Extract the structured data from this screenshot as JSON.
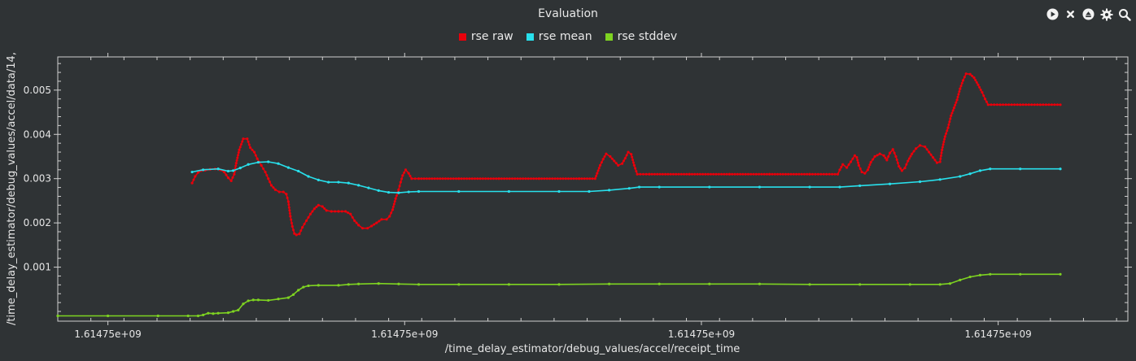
{
  "chart_data": {
    "type": "scatter",
    "title": "Evaluation",
    "xlabel": "/time_delay_estimator/debug_values/accel/receipt_time",
    "ylabel": "/time_delay_estimator/debug_values/accel/data/14,",
    "xlim": [
      0,
      1
    ],
    "ylim": [
      -0.00022,
      0.00575
    ],
    "x_tick_labels": [
      "1.61475e+09",
      "1.61475e+09",
      "1.61475e+09",
      "1.61475e+09"
    ],
    "y_ticks": [
      0.001,
      0.002,
      0.003,
      0.004,
      0.005
    ],
    "y_tick_labels": [
      "0.001",
      "0.002",
      "0.003",
      "0.004",
      "0.005"
    ],
    "legend_position": "top-center",
    "series": [
      {
        "name": "rse raw",
        "color": "#e8000b",
        "points": [
          [
            0.134,
            0.0029
          ],
          [
            0.137,
            0.00305
          ],
          [
            0.14,
            0.00314
          ],
          [
            0.143,
            0.00318
          ],
          [
            0.147,
            0.00319
          ],
          [
            0.152,
            0.00321
          ],
          [
            0.157,
            0.00322
          ],
          [
            0.162,
            0.0032
          ],
          [
            0.166,
            0.00315
          ],
          [
            0.17,
            0.00302
          ],
          [
            0.173,
            0.00295
          ],
          [
            0.176,
            0.0031
          ],
          [
            0.178,
            0.00335
          ],
          [
            0.181,
            0.00365
          ],
          [
            0.185,
            0.0039
          ],
          [
            0.189,
            0.0039
          ],
          [
            0.192,
            0.0037
          ],
          [
            0.196,
            0.0036
          ],
          [
            0.199,
            0.00345
          ],
          [
            0.203,
            0.0033
          ],
          [
            0.207,
            0.00315
          ],
          [
            0.21,
            0.003
          ],
          [
            0.213,
            0.00285
          ],
          [
            0.217,
            0.00275
          ],
          [
            0.221,
            0.0027
          ],
          [
            0.225,
            0.0027
          ],
          [
            0.228,
            0.00265
          ],
          [
            0.23,
            0.00248
          ],
          [
            0.232,
            0.00215
          ],
          [
            0.234,
            0.00192
          ],
          [
            0.236,
            0.00176
          ],
          [
            0.238,
            0.00173
          ],
          [
            0.241,
            0.00175
          ],
          [
            0.244,
            0.0019
          ],
          [
            0.248,
            0.00205
          ],
          [
            0.252,
            0.0022
          ],
          [
            0.256,
            0.00232
          ],
          [
            0.26,
            0.0024
          ],
          [
            0.264,
            0.00237
          ],
          [
            0.268,
            0.00228
          ],
          [
            0.273,
            0.00226
          ],
          [
            0.28,
            0.00226
          ],
          [
            0.287,
            0.00226
          ],
          [
            0.292,
            0.0022
          ],
          [
            0.296,
            0.00205
          ],
          [
            0.3,
            0.00195
          ],
          [
            0.304,
            0.00188
          ],
          [
            0.309,
            0.00188
          ],
          [
            0.313,
            0.00193
          ],
          [
            0.318,
            0.002
          ],
          [
            0.323,
            0.00208
          ],
          [
            0.328,
            0.00208
          ],
          [
            0.331,
            0.00215
          ],
          [
            0.334,
            0.0023
          ],
          [
            0.337,
            0.00255
          ],
          [
            0.34,
            0.00275
          ],
          [
            0.342,
            0.00292
          ],
          [
            0.344,
            0.00307
          ],
          [
            0.347,
            0.0032
          ],
          [
            0.35,
            0.00312
          ],
          [
            0.353,
            0.003
          ],
          [
            0.36,
            0.003
          ],
          [
            0.4,
            0.003
          ],
          [
            0.44,
            0.003
          ],
          [
            0.48,
            0.003
          ],
          [
            0.52,
            0.003
          ],
          [
            0.536,
            0.003
          ],
          [
            0.538,
            0.00312
          ],
          [
            0.541,
            0.0033
          ],
          [
            0.544,
            0.00344
          ],
          [
            0.547,
            0.00356
          ],
          [
            0.551,
            0.0035
          ],
          [
            0.555,
            0.0034
          ],
          [
            0.559,
            0.0033
          ],
          [
            0.563,
            0.00334
          ],
          [
            0.566,
            0.00346
          ],
          [
            0.569,
            0.0036
          ],
          [
            0.572,
            0.00355
          ],
          [
            0.575,
            0.0033
          ],
          [
            0.578,
            0.0031
          ],
          [
            0.59,
            0.0031
          ],
          [
            0.63,
            0.0031
          ],
          [
            0.67,
            0.0031
          ],
          [
            0.71,
            0.0031
          ],
          [
            0.75,
            0.0031
          ],
          [
            0.778,
            0.0031
          ],
          [
            0.78,
            0.0032
          ],
          [
            0.783,
            0.00332
          ],
          [
            0.787,
            0.00325
          ],
          [
            0.791,
            0.00338
          ],
          [
            0.795,
            0.00352
          ],
          [
            0.797,
            0.00348
          ],
          [
            0.799,
            0.0033
          ],
          [
            0.802,
            0.00315
          ],
          [
            0.805,
            0.00312
          ],
          [
            0.808,
            0.0032
          ],
          [
            0.811,
            0.00337
          ],
          [
            0.815,
            0.0035
          ],
          [
            0.82,
            0.00356
          ],
          [
            0.824,
            0.00352
          ],
          [
            0.827,
            0.00342
          ],
          [
            0.83,
            0.00358
          ],
          [
            0.833,
            0.00366
          ],
          [
            0.836,
            0.0035
          ],
          [
            0.839,
            0.00328
          ],
          [
            0.842,
            0.00318
          ],
          [
            0.845,
            0.00324
          ],
          [
            0.848,
            0.0034
          ],
          [
            0.852,
            0.00356
          ],
          [
            0.856,
            0.00368
          ],
          [
            0.86,
            0.00375
          ],
          [
            0.865,
            0.00372
          ],
          [
            0.869,
            0.0036
          ],
          [
            0.873,
            0.00348
          ],
          [
            0.877,
            0.00336
          ],
          [
            0.88,
            0.00338
          ],
          [
            0.882,
            0.00365
          ],
          [
            0.885,
            0.00395
          ],
          [
            0.888,
            0.00415
          ],
          [
            0.891,
            0.00442
          ],
          [
            0.894,
            0.0046
          ],
          [
            0.897,
            0.00478
          ],
          [
            0.9,
            0.00503
          ],
          [
            0.903,
            0.00522
          ],
          [
            0.906,
            0.00537
          ],
          [
            0.91,
            0.00536
          ],
          [
            0.914,
            0.00528
          ],
          [
            0.918,
            0.00512
          ],
          [
            0.922,
            0.00495
          ],
          [
            0.925,
            0.0048
          ],
          [
            0.928,
            0.00467
          ],
          [
            0.94,
            0.00467
          ],
          [
            0.96,
            0.00467
          ],
          [
            0.98,
            0.00467
          ],
          [
            1.0,
            0.00467
          ]
        ]
      },
      {
        "name": "rse mean",
        "color": "#28e0ec",
        "points": [
          [
            0.134,
            0.00315
          ],
          [
            0.145,
            0.0032
          ],
          [
            0.16,
            0.00322
          ],
          [
            0.17,
            0.00317
          ],
          [
            0.175,
            0.00318
          ],
          [
            0.182,
            0.00324
          ],
          [
            0.19,
            0.00332
          ],
          [
            0.2,
            0.00337
          ],
          [
            0.21,
            0.00338
          ],
          [
            0.22,
            0.00334
          ],
          [
            0.23,
            0.00325
          ],
          [
            0.24,
            0.00317
          ],
          [
            0.25,
            0.00305
          ],
          [
            0.26,
            0.00297
          ],
          [
            0.27,
            0.00292
          ],
          [
            0.28,
            0.00292
          ],
          [
            0.29,
            0.0029
          ],
          [
            0.3,
            0.00285
          ],
          [
            0.31,
            0.00279
          ],
          [
            0.32,
            0.00273
          ],
          [
            0.33,
            0.00269
          ],
          [
            0.34,
            0.00268
          ],
          [
            0.35,
            0.0027
          ],
          [
            0.36,
            0.00271
          ],
          [
            0.4,
            0.00271
          ],
          [
            0.45,
            0.00271
          ],
          [
            0.5,
            0.00271
          ],
          [
            0.53,
            0.00271
          ],
          [
            0.55,
            0.00274
          ],
          [
            0.57,
            0.00278
          ],
          [
            0.58,
            0.00281
          ],
          [
            0.6,
            0.00281
          ],
          [
            0.65,
            0.00281
          ],
          [
            0.7,
            0.00281
          ],
          [
            0.75,
            0.00281
          ],
          [
            0.78,
            0.00281
          ],
          [
            0.8,
            0.00284
          ],
          [
            0.83,
            0.00288
          ],
          [
            0.86,
            0.00293
          ],
          [
            0.88,
            0.00298
          ],
          [
            0.9,
            0.00305
          ],
          [
            0.91,
            0.00311
          ],
          [
            0.92,
            0.00318
          ],
          [
            0.93,
            0.00322
          ],
          [
            0.96,
            0.00322
          ],
          [
            1.0,
            0.00322
          ]
        ]
      },
      {
        "name": "rse stddev",
        "color": "#7ed321",
        "points": [
          [
            0.0,
            -0.0001
          ],
          [
            0.05,
            -0.0001
          ],
          [
            0.1,
            -0.0001
          ],
          [
            0.13,
            -0.0001
          ],
          [
            0.14,
            -0.0001
          ],
          [
            0.145,
            -8e-05
          ],
          [
            0.15,
            -4e-05
          ],
          [
            0.155,
            -5e-05
          ],
          [
            0.16,
            -4e-05
          ],
          [
            0.17,
            -3e-05
          ],
          [
            0.175,
            0.0
          ],
          [
            0.18,
            3e-05
          ],
          [
            0.185,
            0.00017
          ],
          [
            0.19,
            0.00024
          ],
          [
            0.195,
            0.00026
          ],
          [
            0.2,
            0.00026
          ],
          [
            0.21,
            0.00025
          ],
          [
            0.22,
            0.00028
          ],
          [
            0.23,
            0.00031
          ],
          [
            0.235,
            0.00038
          ],
          [
            0.24,
            0.00048
          ],
          [
            0.245,
            0.00055
          ],
          [
            0.25,
            0.00058
          ],
          [
            0.26,
            0.00059
          ],
          [
            0.28,
            0.00059
          ],
          [
            0.29,
            0.00061
          ],
          [
            0.3,
            0.00062
          ],
          [
            0.32,
            0.00063
          ],
          [
            0.34,
            0.00062
          ],
          [
            0.36,
            0.00061
          ],
          [
            0.4,
            0.00061
          ],
          [
            0.45,
            0.00061
          ],
          [
            0.5,
            0.00061
          ],
          [
            0.55,
            0.00062
          ],
          [
            0.6,
            0.00062
          ],
          [
            0.65,
            0.00062
          ],
          [
            0.7,
            0.00062
          ],
          [
            0.75,
            0.00061
          ],
          [
            0.8,
            0.00061
          ],
          [
            0.85,
            0.00061
          ],
          [
            0.88,
            0.00061
          ],
          [
            0.89,
            0.00063
          ],
          [
            0.9,
            0.00071
          ],
          [
            0.91,
            0.00078
          ],
          [
            0.92,
            0.00082
          ],
          [
            0.93,
            0.00084
          ],
          [
            0.96,
            0.00084
          ],
          [
            1.0,
            0.00084
          ]
        ]
      }
    ]
  },
  "toolbar": {
    "buttons": [
      "play-icon",
      "clear-icon",
      "eject-icon",
      "gear-icon",
      "zoom-icon"
    ]
  }
}
